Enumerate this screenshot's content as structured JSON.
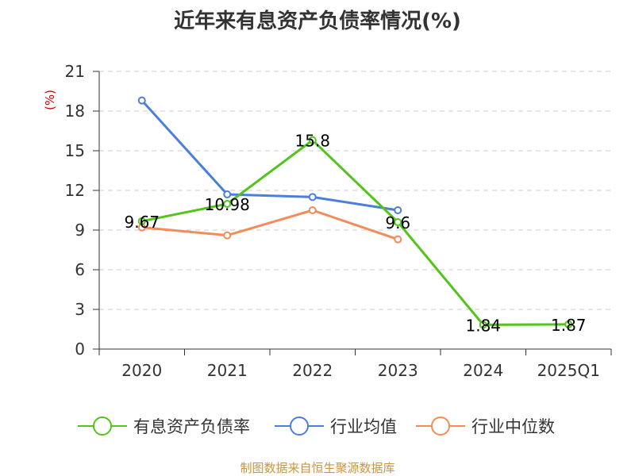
{
  "chart_data": {
    "type": "line",
    "title": "近年来有息资产负债率情况(%)",
    "ylabel": "(%)",
    "categories": [
      "2020",
      "2021",
      "2022",
      "2023",
      "2024",
      "2025Q1"
    ],
    "ylim": [
      0,
      21
    ],
    "yticks": [
      0,
      3,
      6,
      9,
      12,
      15,
      18,
      21
    ],
    "grid": true,
    "legend_position": "bottom",
    "series": [
      {
        "name": "有息资产负债率",
        "color": "#52c41a",
        "values": [
          9.67,
          10.98,
          15.8,
          9.6,
          1.84,
          1.87
        ],
        "labels": [
          "9.67",
          "10.98",
          "15.8",
          "9.6",
          "1.84",
          "1.87"
        ]
      },
      {
        "name": "行业均值",
        "color": "#4a7fdc",
        "values": [
          18.8,
          11.7,
          11.5,
          10.5,
          null,
          null
        ]
      },
      {
        "name": "行业中位数",
        "color": "#f28c5a",
        "values": [
          9.2,
          8.6,
          10.5,
          8.3,
          null,
          null
        ]
      }
    ]
  },
  "footer": {
    "source": "制图数据来自恒生聚源数据库"
  }
}
